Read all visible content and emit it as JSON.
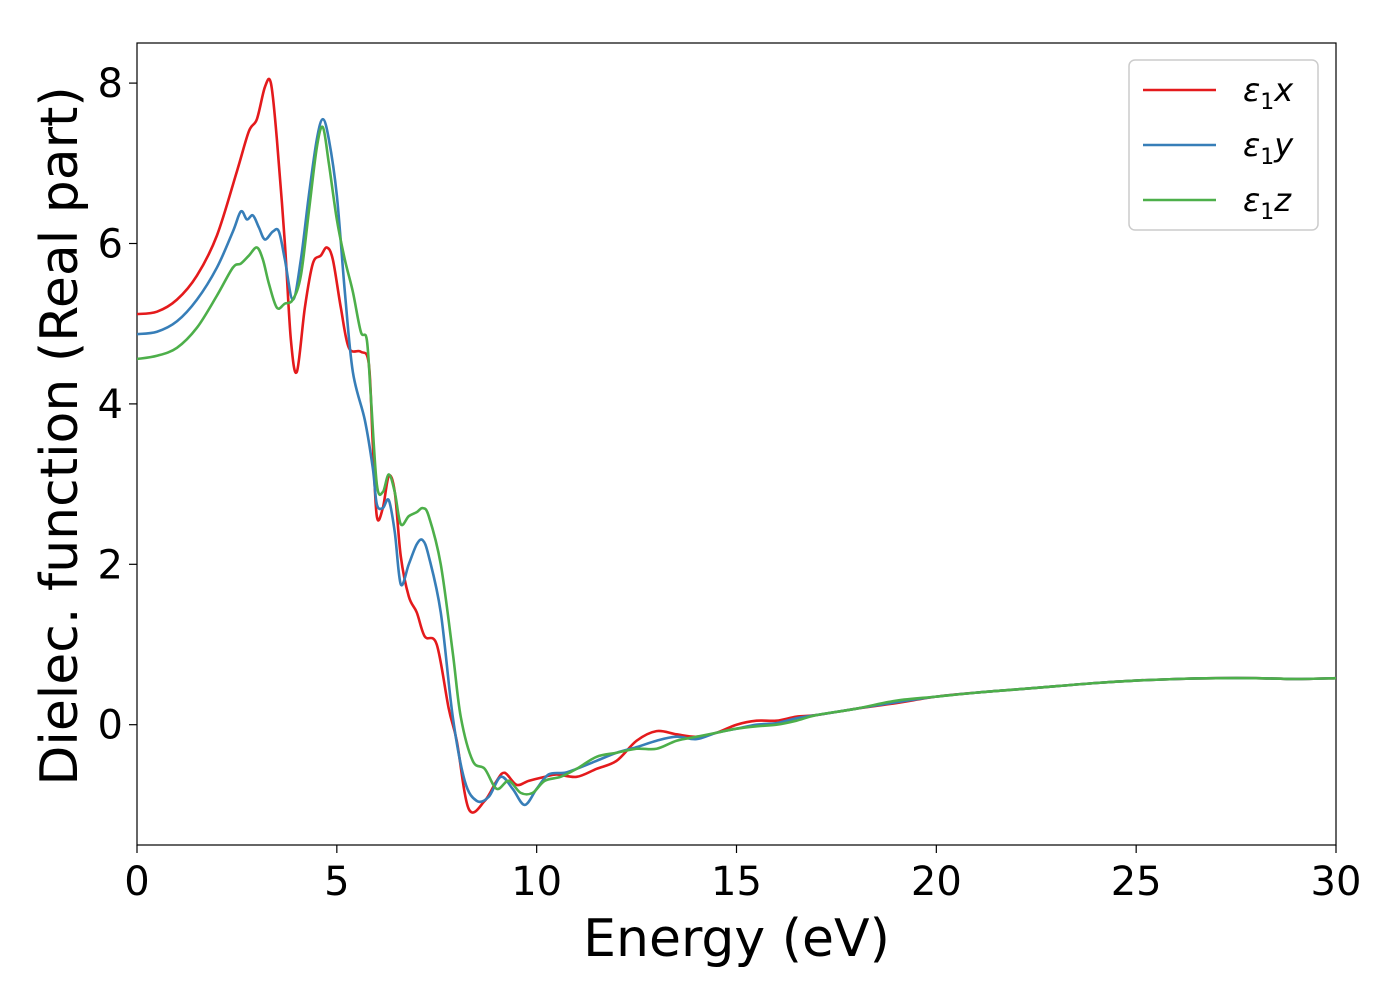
{
  "chart_data": {
    "type": "line",
    "title": "",
    "xlabel": "Energy (eV)",
    "ylabel": "Dielec. function (Real part)",
    "xlim": [
      0,
      30
    ],
    "ylim": [
      -1.5,
      8.5
    ],
    "xticks": [
      "0",
      "5",
      "10",
      "15",
      "20",
      "25",
      "30"
    ],
    "yticks": [
      "0",
      "2",
      "4",
      "6",
      "8"
    ],
    "grid": false,
    "legend_position": "top-right",
    "series": [
      {
        "name_main": "ε",
        "name_sub": "1",
        "name_suffix": "x",
        "color": "#e41a1c",
        "points": [
          [
            0,
            5.12
          ],
          [
            0.5,
            5.15
          ],
          [
            1.0,
            5.3
          ],
          [
            1.5,
            5.6
          ],
          [
            2.0,
            6.1
          ],
          [
            2.5,
            6.9
          ],
          [
            2.8,
            7.4
          ],
          [
            3.0,
            7.55
          ],
          [
            3.2,
            7.95
          ],
          [
            3.35,
            8.0
          ],
          [
            3.5,
            7.3
          ],
          [
            3.7,
            6.0
          ],
          [
            3.85,
            4.8
          ],
          [
            4.0,
            4.4
          ],
          [
            4.2,
            5.2
          ],
          [
            4.4,
            5.75
          ],
          [
            4.6,
            5.85
          ],
          [
            4.75,
            5.95
          ],
          [
            4.9,
            5.8
          ],
          [
            5.1,
            5.2
          ],
          [
            5.3,
            4.7
          ],
          [
            5.6,
            4.65
          ],
          [
            5.8,
            4.5
          ],
          [
            5.9,
            3.5
          ],
          [
            6.0,
            2.6
          ],
          [
            6.15,
            2.7
          ],
          [
            6.3,
            3.1
          ],
          [
            6.45,
            2.9
          ],
          [
            6.6,
            2.1
          ],
          [
            6.8,
            1.6
          ],
          [
            7.0,
            1.4
          ],
          [
            7.2,
            1.1
          ],
          [
            7.5,
            1.0
          ],
          [
            7.8,
            0.2
          ],
          [
            8.0,
            -0.2
          ],
          [
            8.3,
            -1.05
          ],
          [
            8.7,
            -0.95
          ],
          [
            9.0,
            -0.7
          ],
          [
            9.2,
            -0.6
          ],
          [
            9.5,
            -0.75
          ],
          [
            9.8,
            -0.7
          ],
          [
            10.2,
            -0.65
          ],
          [
            10.5,
            -0.62
          ],
          [
            11.0,
            -0.65
          ],
          [
            11.5,
            -0.55
          ],
          [
            12.0,
            -0.45
          ],
          [
            12.5,
            -0.2
          ],
          [
            13.0,
            -0.08
          ],
          [
            13.5,
            -0.12
          ],
          [
            14.0,
            -0.15
          ],
          [
            14.5,
            -0.1
          ],
          [
            15.0,
            0.0
          ],
          [
            15.5,
            0.05
          ],
          [
            16.0,
            0.05
          ],
          [
            16.5,
            0.1
          ],
          [
            17.0,
            0.12
          ],
          [
            18.0,
            0.2
          ],
          [
            19.0,
            0.27
          ],
          [
            20.0,
            0.35
          ],
          [
            21.0,
            0.4
          ],
          [
            22.0,
            0.44
          ],
          [
            23.0,
            0.48
          ],
          [
            24.0,
            0.52
          ],
          [
            25.0,
            0.55
          ],
          [
            26.0,
            0.57
          ],
          [
            27.0,
            0.58
          ],
          [
            28.0,
            0.58
          ],
          [
            29.0,
            0.57
          ],
          [
            30.0,
            0.58
          ]
        ]
      },
      {
        "name_main": "ε",
        "name_sub": "1",
        "name_suffix": "y",
        "color": "#377eb8",
        "points": [
          [
            0,
            4.87
          ],
          [
            0.5,
            4.9
          ],
          [
            1.0,
            5.03
          ],
          [
            1.5,
            5.3
          ],
          [
            2.0,
            5.7
          ],
          [
            2.4,
            6.15
          ],
          [
            2.6,
            6.4
          ],
          [
            2.75,
            6.3
          ],
          [
            2.9,
            6.35
          ],
          [
            3.05,
            6.2
          ],
          [
            3.2,
            6.05
          ],
          [
            3.4,
            6.15
          ],
          [
            3.55,
            6.15
          ],
          [
            3.7,
            5.8
          ],
          [
            3.9,
            5.3
          ],
          [
            4.1,
            5.8
          ],
          [
            4.3,
            6.6
          ],
          [
            4.5,
            7.3
          ],
          [
            4.65,
            7.55
          ],
          [
            4.8,
            7.3
          ],
          [
            5.0,
            6.6
          ],
          [
            5.2,
            5.4
          ],
          [
            5.4,
            4.4
          ],
          [
            5.7,
            3.8
          ],
          [
            5.9,
            3.2
          ],
          [
            6.0,
            2.75
          ],
          [
            6.15,
            2.7
          ],
          [
            6.3,
            2.8
          ],
          [
            6.45,
            2.4
          ],
          [
            6.6,
            1.75
          ],
          [
            6.8,
            2.0
          ],
          [
            7.0,
            2.25
          ],
          [
            7.15,
            2.3
          ],
          [
            7.3,
            2.1
          ],
          [
            7.6,
            1.4
          ],
          [
            7.9,
            0.1
          ],
          [
            8.2,
            -0.7
          ],
          [
            8.5,
            -0.95
          ],
          [
            8.8,
            -0.9
          ],
          [
            9.1,
            -0.65
          ],
          [
            9.4,
            -0.8
          ],
          [
            9.7,
            -1.0
          ],
          [
            10.0,
            -0.8
          ],
          [
            10.3,
            -0.62
          ],
          [
            10.7,
            -0.6
          ],
          [
            11.0,
            -0.55
          ],
          [
            11.5,
            -0.45
          ],
          [
            12.0,
            -0.35
          ],
          [
            12.5,
            -0.28
          ],
          [
            13.0,
            -0.2
          ],
          [
            13.5,
            -0.15
          ],
          [
            14.0,
            -0.18
          ],
          [
            14.5,
            -0.1
          ],
          [
            15.0,
            -0.05
          ],
          [
            15.5,
            0.0
          ],
          [
            16.0,
            0.02
          ],
          [
            16.5,
            0.08
          ],
          [
            17.0,
            0.12
          ],
          [
            18.0,
            0.2
          ],
          [
            19.0,
            0.28
          ],
          [
            20.0,
            0.35
          ],
          [
            21.0,
            0.4
          ],
          [
            22.0,
            0.44
          ],
          [
            23.0,
            0.48
          ],
          [
            24.0,
            0.52
          ],
          [
            25.0,
            0.55
          ],
          [
            26.0,
            0.57
          ],
          [
            27.0,
            0.58
          ],
          [
            28.0,
            0.58
          ],
          [
            29.0,
            0.57
          ],
          [
            30.0,
            0.58
          ]
        ]
      },
      {
        "name_main": "ε",
        "name_sub": "1",
        "name_suffix": "z",
        "color": "#4daf4a",
        "points": [
          [
            0,
            4.56
          ],
          [
            0.5,
            4.6
          ],
          [
            1.0,
            4.7
          ],
          [
            1.5,
            4.95
          ],
          [
            2.0,
            5.35
          ],
          [
            2.4,
            5.7
          ],
          [
            2.6,
            5.75
          ],
          [
            2.8,
            5.85
          ],
          [
            3.0,
            5.95
          ],
          [
            3.15,
            5.8
          ],
          [
            3.3,
            5.5
          ],
          [
            3.5,
            5.2
          ],
          [
            3.7,
            5.25
          ],
          [
            3.9,
            5.3
          ],
          [
            4.1,
            5.6
          ],
          [
            4.3,
            6.4
          ],
          [
            4.5,
            7.2
          ],
          [
            4.65,
            7.45
          ],
          [
            4.8,
            7.0
          ],
          [
            5.0,
            6.3
          ],
          [
            5.2,
            5.8
          ],
          [
            5.4,
            5.4
          ],
          [
            5.6,
            4.9
          ],
          [
            5.75,
            4.8
          ],
          [
            5.85,
            4.1
          ],
          [
            6.0,
            3.0
          ],
          [
            6.15,
            2.9
          ],
          [
            6.3,
            3.12
          ],
          [
            6.45,
            2.9
          ],
          [
            6.6,
            2.5
          ],
          [
            6.8,
            2.6
          ],
          [
            7.0,
            2.65
          ],
          [
            7.15,
            2.7
          ],
          [
            7.3,
            2.6
          ],
          [
            7.6,
            2.0
          ],
          [
            7.9,
            0.9
          ],
          [
            8.1,
            0.1
          ],
          [
            8.4,
            -0.45
          ],
          [
            8.7,
            -0.55
          ],
          [
            9.0,
            -0.8
          ],
          [
            9.3,
            -0.7
          ],
          [
            9.6,
            -0.85
          ],
          [
            9.9,
            -0.85
          ],
          [
            10.2,
            -0.7
          ],
          [
            10.6,
            -0.65
          ],
          [
            11.0,
            -0.55
          ],
          [
            11.5,
            -0.4
          ],
          [
            12.0,
            -0.35
          ],
          [
            12.5,
            -0.3
          ],
          [
            13.0,
            -0.3
          ],
          [
            13.5,
            -0.2
          ],
          [
            14.0,
            -0.15
          ],
          [
            14.5,
            -0.1
          ],
          [
            15.0,
            -0.05
          ],
          [
            15.5,
            -0.02
          ],
          [
            16.0,
            0.0
          ],
          [
            16.5,
            0.05
          ],
          [
            17.0,
            0.12
          ],
          [
            18.0,
            0.2
          ],
          [
            19.0,
            0.3
          ],
          [
            20.0,
            0.35
          ],
          [
            21.0,
            0.4
          ],
          [
            22.0,
            0.44
          ],
          [
            23.0,
            0.48
          ],
          [
            24.0,
            0.52
          ],
          [
            25.0,
            0.55
          ],
          [
            26.0,
            0.57
          ],
          [
            27.0,
            0.58
          ],
          [
            28.0,
            0.58
          ],
          [
            29.0,
            0.57
          ],
          [
            30.0,
            0.58
          ]
        ]
      }
    ]
  }
}
